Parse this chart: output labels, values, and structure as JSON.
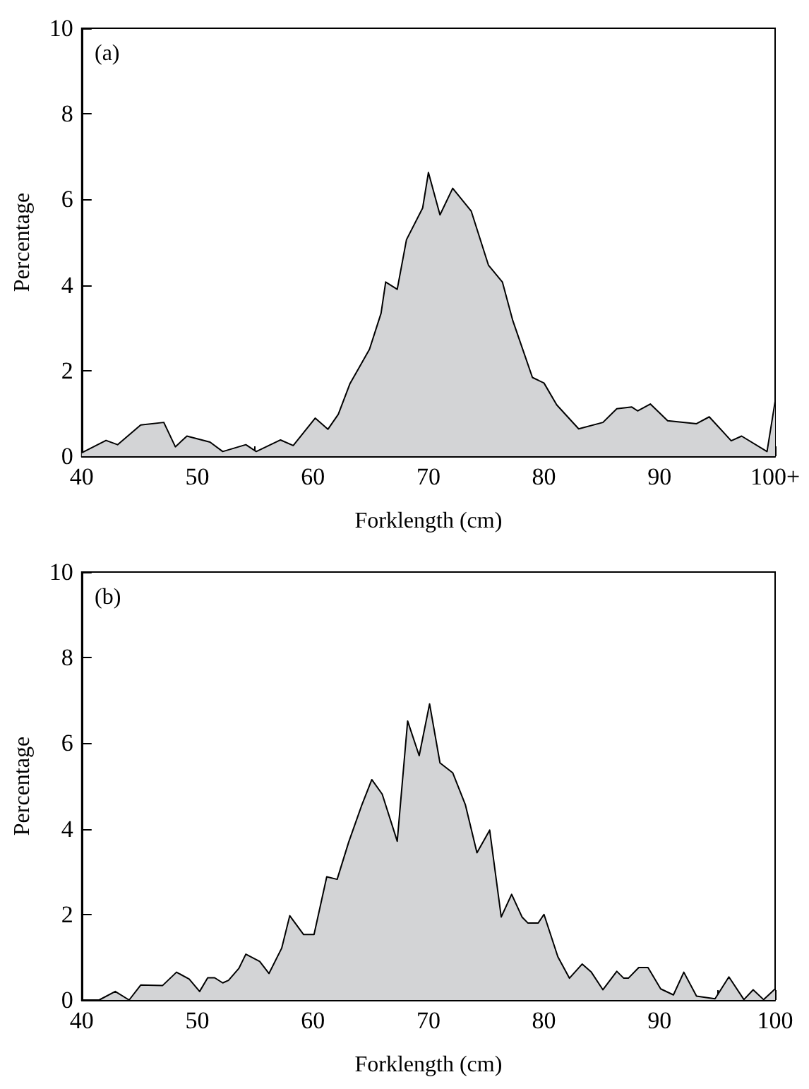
{
  "chart_data": [
    {
      "type": "area",
      "xlabel": "Forklength (cm)",
      "ylabel": "Percentage",
      "annotations": [
        "(a)"
      ],
      "xlim": [
        40,
        100
      ],
      "ylim": [
        0,
        10
      ],
      "xticks": [
        40,
        {
          "value": 45,
          "label": null
        },
        50,
        {
          "value": 55,
          "label": null
        },
        60,
        {
          "value": 65,
          "label": null
        },
        70,
        {
          "value": 75,
          "label": null
        },
        80,
        {
          "value": 85,
          "label": null
        },
        90,
        {
          "value": 95,
          "label": null
        },
        {
          "value": 100,
          "label": "100+"
        }
      ],
      "yticks": [
        0,
        2,
        4,
        6,
        8,
        10
      ],
      "grid": false,
      "marker": "none",
      "series": [
        {
          "color": "#d3d4d6",
          "x": [
            40,
            42.1,
            43.1,
            45.1,
            47.1,
            48.1,
            49.1,
            51.1,
            52.2,
            54.2,
            55.1,
            57.2,
            58.3,
            60.2,
            61.3,
            62.2,
            63.2,
            64.9,
            65.9,
            66.3,
            67.3,
            68.1,
            69.5,
            70,
            71,
            72.1,
            73.7,
            75.2,
            76.4,
            77.3,
            79,
            80,
            81.1,
            83,
            85.1,
            86.3,
            87.6,
            88.1,
            89.2,
            90.7,
            93.2,
            94.3,
            96.2,
            97.1,
            99.3,
            100
          ],
          "values": [
            0.08,
            0.37,
            0.27,
            0.73,
            0.79,
            0.22,
            0.47,
            0.33,
            0.11,
            0.27,
            0.11,
            0.38,
            0.25,
            0.89,
            0.63,
            0.98,
            1.69,
            2.5,
            3.34,
            4.07,
            3.9,
            5.06,
            5.8,
            6.63,
            5.64,
            6.26,
            5.73,
            4.46,
            4.07,
            3.17,
            1.84,
            1.71,
            1.2,
            0.64,
            0.79,
            1.11,
            1.15,
            1.06,
            1.22,
            0.83,
            0.76,
            0.92,
            0.36,
            0.47,
            0.11,
            1.28
          ]
        }
      ]
    },
    {
      "type": "area",
      "xlabel": "Forklength (cm)",
      "ylabel": "Percentage",
      "annotations": [
        "(b)"
      ],
      "xlim": [
        40,
        100
      ],
      "ylim": [
        0,
        10
      ],
      "xticks": [
        40,
        {
          "value": 45,
          "label": null
        },
        50,
        {
          "value": 55,
          "label": null
        },
        60,
        {
          "value": 65,
          "label": null
        },
        70,
        {
          "value": 75,
          "label": null
        },
        80,
        {
          "value": 85,
          "label": null
        },
        90,
        {
          "value": 95,
          "label": null
        },
        100
      ],
      "yticks": [
        0,
        2,
        4,
        6,
        8,
        10
      ],
      "grid": false,
      "marker": "none",
      "series": [
        {
          "color": "#d3d4d6",
          "x": [
            41.5,
            42.9,
            44.1,
            45.1,
            47,
            48.2,
            49.3,
            50.2,
            50.9,
            51.5,
            52.2,
            52.7,
            53.6,
            54.2,
            55.4,
            56.2,
            57.3,
            58,
            59.2,
            60.1,
            61.2,
            62.1,
            63.1,
            64.2,
            65.1,
            66,
            67.3,
            68.2,
            69.2,
            70.1,
            71,
            72.1,
            73.2,
            74.2,
            75.3,
            76.3,
            77.2,
            78.1,
            78.6,
            79.5,
            80,
            81.2,
            82.2,
            83.3,
            84.1,
            85.1,
            86.3,
            86.9,
            87.3,
            88.2,
            89,
            90.1,
            91.2,
            92.1,
            93.2,
            94.8,
            96,
            97.3,
            98.1,
            99,
            100
          ],
          "values": [
            0,
            0.2,
            0,
            0.35,
            0.34,
            0.65,
            0.49,
            0.2,
            0.52,
            0.52,
            0.4,
            0.46,
            0.74,
            1.07,
            0.9,
            0.62,
            1.21,
            1.97,
            1.53,
            1.53,
            2.88,
            2.82,
            3.69,
            4.53,
            5.15,
            4.81,
            3.71,
            6.52,
            5.71,
            6.92,
            5.54,
            5.31,
            4.56,
            3.44,
            3.97,
            1.94,
            2.47,
            1.94,
            1.8,
            1.8,
            2,
            1.01,
            0.51,
            0.84,
            0.65,
            0.24,
            0.67,
            0.51,
            0.51,
            0.76,
            0.76,
            0.26,
            0.12,
            0.65,
            0.09,
            0.03,
            0.54,
            0.01,
            0.24,
            0.01,
            0.26
          ]
        }
      ]
    }
  ]
}
